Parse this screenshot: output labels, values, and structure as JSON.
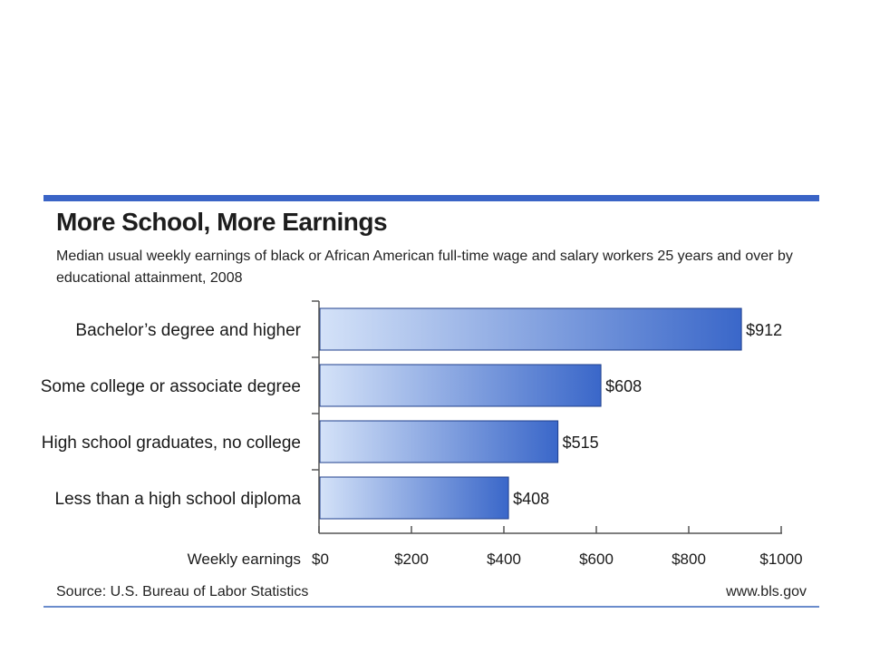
{
  "chart_data": {
    "type": "bar",
    "orientation": "horizontal",
    "title": "More School, More Earnings",
    "subtitle": "Median usual weekly earnings of black or African American full-time wage and salary workers 25 years and over by educational attainment, 2008",
    "categories": [
      "Bachelor’s degree and higher",
      "Some college or associate degree",
      "High school graduates, no college",
      "Less than a high school diploma"
    ],
    "values": [
      912,
      608,
      515,
      408
    ],
    "value_labels": [
      "$912",
      "$608",
      "$515",
      "$408"
    ],
    "xlabel": "Weekly earnings",
    "xlim": [
      0,
      1000
    ],
    "xticks": [
      0,
      200,
      400,
      600,
      800,
      1000
    ],
    "xtick_labels": [
      "$0",
      "$200",
      "$400",
      "$600",
      "$800",
      "$1000"
    ],
    "grid": false,
    "bar_gradient": [
      "#d4e2f8",
      "#3a67c9"
    ]
  },
  "source": "Source: U.S. Bureau of Labor Statistics",
  "website": "www.bls.gov",
  "colors": {
    "accent_rule": "#3a64c6",
    "bar_edge": "#1f3f8c"
  }
}
